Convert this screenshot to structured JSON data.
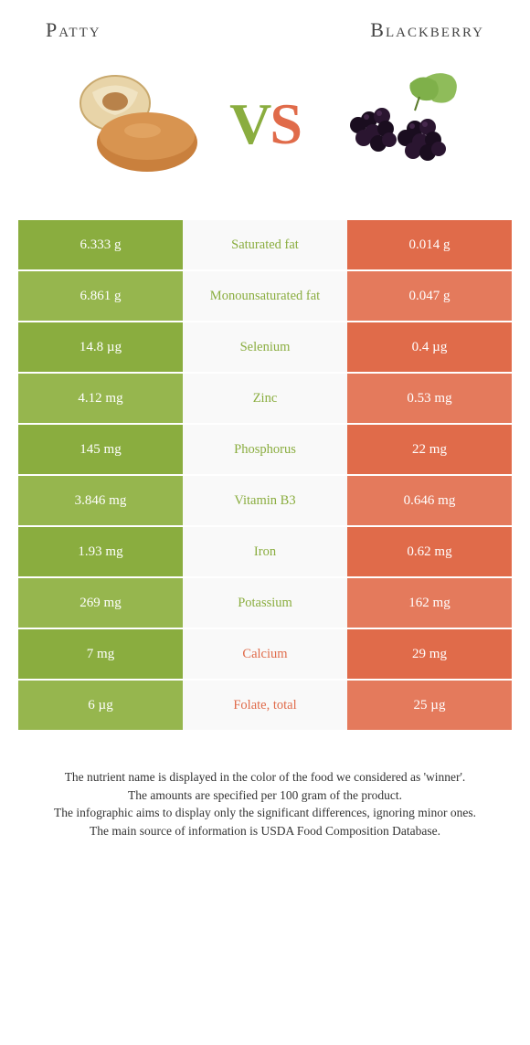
{
  "header": {
    "left": "Patty",
    "right": "Blackberry"
  },
  "vs": {
    "v": "V",
    "s": "S"
  },
  "colors": {
    "green": "#8aad3f",
    "green_alt": "#96b64e",
    "orange": "#e06b4a",
    "orange_alt": "#e47a5c"
  },
  "rows": [
    {
      "left": "6.333 g",
      "mid": "Saturated fat",
      "right": "0.014 g",
      "winner": "green"
    },
    {
      "left": "6.861 g",
      "mid": "Monounsaturated fat",
      "right": "0.047 g",
      "winner": "green"
    },
    {
      "left": "14.8 µg",
      "mid": "Selenium",
      "right": "0.4 µg",
      "winner": "green"
    },
    {
      "left": "4.12 mg",
      "mid": "Zinc",
      "right": "0.53 mg",
      "winner": "green"
    },
    {
      "left": "145 mg",
      "mid": "Phosphorus",
      "right": "22 mg",
      "winner": "green"
    },
    {
      "left": "3.846 mg",
      "mid": "Vitamin B3",
      "right": "0.646 mg",
      "winner": "green"
    },
    {
      "left": "1.93 mg",
      "mid": "Iron",
      "right": "0.62 mg",
      "winner": "green"
    },
    {
      "left": "269 mg",
      "mid": "Potassium",
      "right": "162 mg",
      "winner": "green"
    },
    {
      "left": "7 mg",
      "mid": "Calcium",
      "right": "29 mg",
      "winner": "orange"
    },
    {
      "left": "6 µg",
      "mid": "Folate, total",
      "right": "25 µg",
      "winner": "orange"
    }
  ],
  "footer": {
    "line1": "The nutrient name is displayed in the color of the food we considered as 'winner'.",
    "line2": "The amounts are specified per 100 gram of the product.",
    "line3": "The infographic aims to display only the significant differences, ignoring minor ones.",
    "line4": "The main source of information is USDA Food Composition Database."
  }
}
